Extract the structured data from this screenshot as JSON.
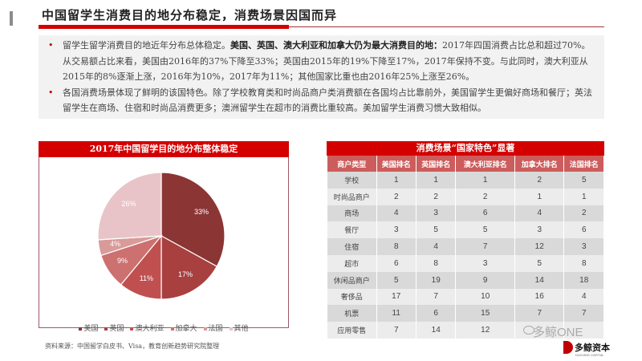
{
  "header": {
    "title": "中国留学生消费目的地分布稳定，消费场景因国而异"
  },
  "summary": {
    "bullets": [
      {
        "pre": "留学生留学消费目的地近年分布总体稳定。",
        "bold": "美国、英国、澳大利亚和加拿大仍为最大消费目的地：",
        "post": "2017年四国消费占比总和超过70%。从交易额占比来看，美国由2016年的37%下降至33%；英国由2015年的19%下降至17%，2017年保持不变。与此同时，澳大利亚从2015年的8%逐渐上涨，2016年为10%，2017年为11%；其他国家比重也由2016年25%上涨至26%。"
      },
      {
        "pre": "各国消费场景体现了鲜明的该国特色。除了学校教育类和时尚品商户类消费额在各国均占比靠前外，美国留学生更偏好商场和餐厅；英法留学生在商场、住宿和时尚品消费更多；澳洲留学生在超市的消费比重较高。美加留学生消费习惯大致相似。",
        "bold": "",
        "post": ""
      }
    ]
  },
  "pie_panel": {
    "title": "2017年中国留学目的地分布整体稳定",
    "source": "资料来源：中国留学白皮书、Visa，教育创新趋势研究院整理"
  },
  "chart_data": {
    "type": "pie",
    "title": "2017年中国留学目的地分布整体稳定",
    "categories": [
      "美国",
      "英国",
      "澳大利亚",
      "加拿大",
      "法国",
      "其他"
    ],
    "values": [
      33,
      17,
      11,
      9,
      4,
      26
    ],
    "labels": [
      "33%",
      "17%",
      "11%",
      "9%",
      "4%",
      "26%"
    ],
    "colors": [
      "#8b3535",
      "#a84040",
      "#c05050",
      "#cc7070",
      "#d99a9a",
      "#e8c4c8"
    ],
    "legend_position": "bottom"
  },
  "table": {
    "title": "消费场景“国家特色”显著",
    "headers": [
      "商户类型",
      "美国排名",
      "英国排名",
      "澳大利亚排名",
      "加拿大排名",
      "法国排名"
    ],
    "rows": [
      [
        "学校",
        "1",
        "1",
        "1",
        "2",
        "5"
      ],
      [
        "时尚品商户",
        "2",
        "2",
        "2",
        "1",
        "1"
      ],
      [
        "商场",
        "4",
        "3",
        "6",
        "4",
        "2"
      ],
      [
        "餐厅",
        "3",
        "5",
        "5",
        "3",
        "6"
      ],
      [
        "住宿",
        "8",
        "4",
        "7",
        "12",
        "3"
      ],
      [
        "超市",
        "6",
        "8",
        "3",
        "5",
        "8"
      ],
      [
        "休闲品商户",
        "5",
        "19",
        "9",
        "14",
        "18"
      ],
      [
        "奢侈品",
        "17",
        "7",
        "10",
        "16",
        "4"
      ],
      [
        "机票",
        "11",
        "6",
        "15",
        "7",
        "7"
      ],
      [
        "应用零售",
        "7",
        "14",
        "12",
        "",
        ""
      ]
    ]
  },
  "watermark": {
    "text": "多鲸ONE",
    "logo_text": "多鲸资本",
    "logo_sub": "DUOJING CAPITAL"
  }
}
